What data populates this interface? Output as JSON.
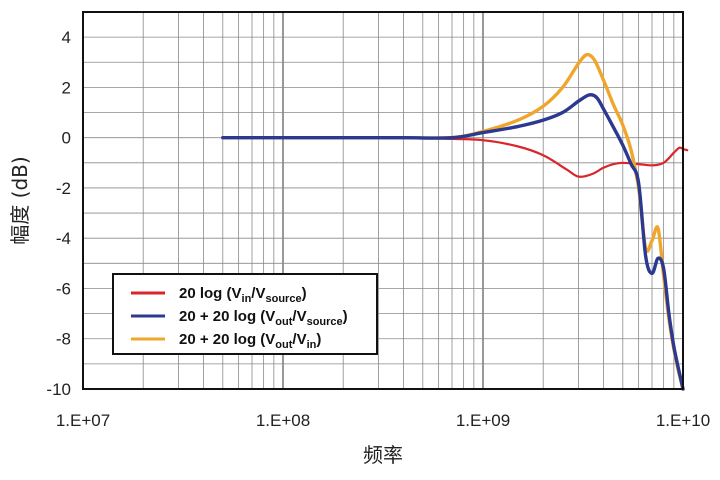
{
  "chart_data": {
    "type": "line",
    "title": "",
    "xlabel": "频率",
    "ylabel": "幅度 (dB)",
    "xscale": "log",
    "xlim": [
      10000000,
      10000000000
    ],
    "ylim": [
      -10,
      5
    ],
    "grid": true,
    "legend_position": "bottom-left",
    "x_ticks": [
      {
        "value": 10000000,
        "label": "1.E+07"
      },
      {
        "value": 100000000,
        "label": "1.E+08"
      },
      {
        "value": 1000000000,
        "label": "1.E+09"
      },
      {
        "value": 10000000000,
        "label": "1.E+10"
      }
    ],
    "y_ticks": [
      {
        "value": 4,
        "label": "4"
      },
      {
        "value": 2,
        "label": "2"
      },
      {
        "value": 0,
        "label": "0"
      },
      {
        "value": -2,
        "label": "-2"
      },
      {
        "value": -4,
        "label": "-4"
      },
      {
        "value": -6,
        "label": "-6"
      },
      {
        "value": -8,
        "label": "-8"
      },
      {
        "value": -10,
        "label": "-10"
      }
    ],
    "series": [
      {
        "color": "#d9262c",
        "legend": {
          "base": "20 log (V",
          "sub1": "in",
          "mid": "/V",
          "sub2": "source",
          "end": ")"
        },
        "x": [
          50000000,
          100000000,
          200000000,
          400000000,
          700000000,
          1000000000,
          1500000000,
          2000000000,
          2600000000,
          3000000000,
          3500000000,
          4000000000,
          4500000000,
          5000000000,
          6000000000,
          7000000000,
          8000000000,
          9000000000,
          9600000000,
          10000000000,
          10500000000
        ],
        "y": [
          0,
          0,
          0,
          0,
          -0.05,
          -0.1,
          -0.35,
          -0.7,
          -1.25,
          -1.55,
          -1.45,
          -1.2,
          -1.05,
          -1.0,
          -1.05,
          -1.1,
          -1.0,
          -0.6,
          -0.4,
          -0.45,
          -0.5
        ]
      },
      {
        "color": "#f0a62d",
        "legend": {
          "base": "20 + 20 log (V",
          "sub1": "out",
          "mid": "/V",
          "sub2": "in",
          "end": ")"
        },
        "x": [
          50000000,
          100000000,
          200000000,
          400000000,
          700000000,
          1000000000,
          1500000000,
          2000000000,
          2500000000,
          3000000000,
          3300000000,
          3600000000,
          4000000000,
          4500000000,
          5000000000,
          5500000000,
          6000000000,
          6500000000,
          7000000000,
          7500000000,
          8000000000,
          8500000000,
          9000000000,
          9500000000,
          10000000000
        ],
        "y": [
          0,
          0,
          0,
          0,
          0,
          0.25,
          0.7,
          1.25,
          2.0,
          2.95,
          3.3,
          3.1,
          2.3,
          1.3,
          0.5,
          -0.5,
          -2.0,
          -4.4,
          -4.1,
          -3.6,
          -5.5,
          -7.2,
          -8.4,
          -9.3,
          -10
        ]
      },
      {
        "color": "#2b3990",
        "legend": {
          "base": "20 + 20 log (V",
          "sub1": "out",
          "mid": "/V",
          "sub2": "source",
          "end": ")"
        },
        "x": [
          50000000,
          100000000,
          200000000,
          400000000,
          700000000,
          1000000000,
          1500000000,
          2000000000,
          2500000000,
          3000000000,
          3400000000,
          3700000000,
          4000000000,
          4500000000,
          5000000000,
          5500000000,
          6000000000,
          6500000000,
          7000000000,
          7500000000,
          8000000000,
          8500000000,
          9000000000,
          9500000000,
          10000000000
        ],
        "y": [
          0,
          0,
          0,
          0,
          0,
          0.2,
          0.45,
          0.7,
          1.0,
          1.45,
          1.7,
          1.6,
          1.15,
          0.4,
          -0.3,
          -1.05,
          -1.8,
          -4.7,
          -5.4,
          -4.8,
          -5.2,
          -7.0,
          -8.3,
          -9.2,
          -10
        ]
      }
    ]
  }
}
